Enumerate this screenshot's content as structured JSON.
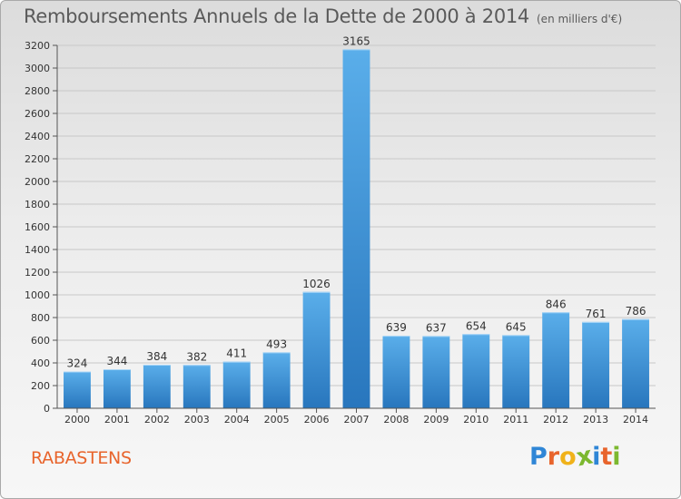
{
  "chart_data": {
    "type": "bar",
    "title": "Remboursements Annuels de la Dette de 2000 à 2014",
    "subtitle": "(en milliers d'€)",
    "categories": [
      "2000",
      "2001",
      "2002",
      "2003",
      "2004",
      "2005",
      "2006",
      "2007",
      "2008",
      "2009",
      "2010",
      "2011",
      "2012",
      "2013",
      "2014"
    ],
    "values": [
      324,
      344,
      384,
      382,
      411,
      493,
      1026,
      3165,
      639,
      637,
      654,
      645,
      846,
      761,
      786
    ],
    "ylim": [
      0,
      3200
    ],
    "yticks": [
      0,
      200,
      400,
      600,
      800,
      1000,
      1200,
      1400,
      1600,
      1800,
      2000,
      2200,
      2400,
      2600,
      2800,
      3000,
      3200
    ],
    "grid": true,
    "bar_color": "#3d8fd6",
    "xlabel": "",
    "ylabel": ""
  },
  "footer": {
    "city": "RABASTENS",
    "logo_letters": [
      {
        "ch": "P",
        "color": "#2f86d6"
      },
      {
        "ch": "r",
        "color": "#e8642c"
      },
      {
        "ch": "o",
        "color": "#f0b21a"
      },
      {
        "ch": "x",
        "color": "#7cb82f"
      },
      {
        "ch": "i",
        "color": "#2f86d6"
      },
      {
        "ch": "t",
        "color": "#e8642c"
      },
      {
        "ch": "i",
        "color": "#7cb82f"
      }
    ]
  }
}
